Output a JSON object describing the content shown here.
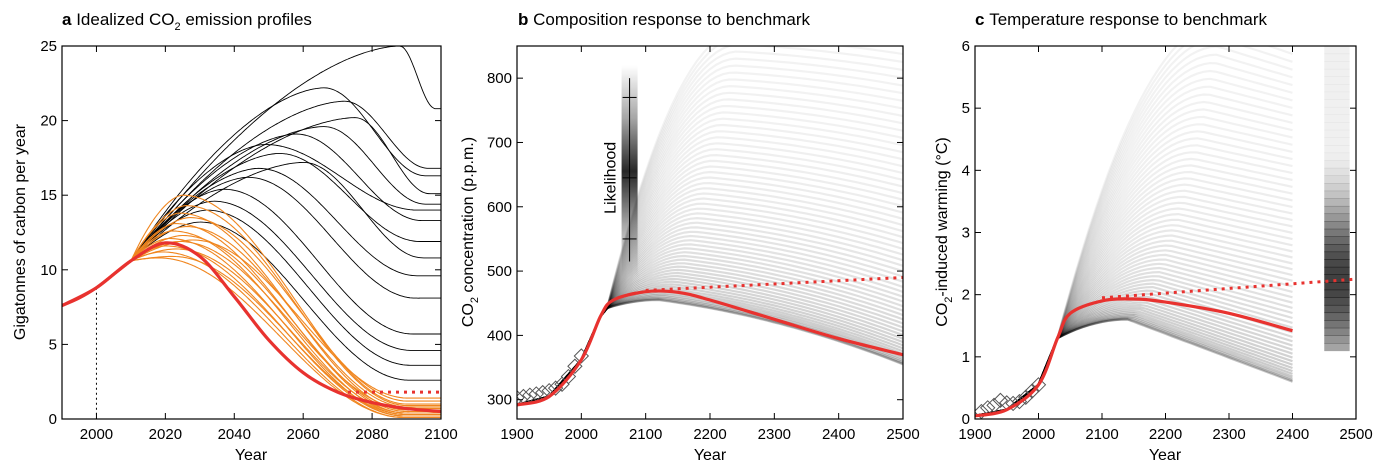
{
  "colors": {
    "background": "#ffffff",
    "highlight": "#e8322f",
    "orange": "#f0861f",
    "ensemble": "#000000"
  },
  "chart_data": [
    {
      "type": "line",
      "panel": "a",
      "title": "Idealized CO",
      "title_sub": "2",
      "title_rest": " emission profiles",
      "xlabel": "Year",
      "ylabel": "Gigatonnes of carbon per year",
      "xlim": [
        1990,
        2100
      ],
      "ylim": [
        0,
        25
      ],
      "xticks": [
        2000,
        2020,
        2040,
        2060,
        2080,
        2100
      ],
      "yticks": [
        0,
        5,
        10,
        15,
        20,
        25
      ],
      "grid": false,
      "history": {
        "x": [
          1990,
          1995,
          2000,
          2005,
          2010
        ],
        "y": [
          7.6,
          8.1,
          8.8,
          9.7,
          10.6
        ]
      },
      "marker_year": 2000,
      "benchmark": {
        "x": [
          1990,
          2000,
          2010,
          2020,
          2030,
          2040,
          2050,
          2060,
          2070,
          2080,
          2090,
          2100
        ],
        "y": [
          7.6,
          8.8,
          10.6,
          11.8,
          10.9,
          8.2,
          5.3,
          3.1,
          1.8,
          1.1,
          0.7,
          0.5
        ]
      },
      "benchmark_dotted": {
        "x": [
          2073,
          2100
        ],
        "y": [
          1.8,
          1.8
        ]
      },
      "black_profiles": [
        {
          "peak_year": 2088,
          "peak": 25.0,
          "end": 20.8
        },
        {
          "peak_year": 2066,
          "peak": 22.2,
          "end": 16.3
        },
        {
          "peak_year": 2072,
          "peak": 21.3,
          "end": 16.8
        },
        {
          "peak_year": 2075,
          "peak": 20.2,
          "end": 15.1
        },
        {
          "peak_year": 2066,
          "peak": 19.6,
          "end": 14.4
        },
        {
          "peak_year": 2058,
          "peak": 19.1,
          "end": 13.3
        },
        {
          "peak_year": 2049,
          "peak": 18.4,
          "end": 14.0
        },
        {
          "peak_year": 2053,
          "peak": 17.8,
          "end": 11.9
        },
        {
          "peak_year": 2060,
          "peak": 17.2,
          "end": 10.8
        },
        {
          "peak_year": 2047,
          "peak": 16.8,
          "end": 9.6
        },
        {
          "peak_year": 2044,
          "peak": 16.2,
          "end": 8.1
        },
        {
          "peak_year": 2037,
          "peak": 15.4,
          "end": 5.7
        },
        {
          "peak_year": 2034,
          "peak": 14.6,
          "end": 4.6
        },
        {
          "peak_year": 2032,
          "peak": 14.0,
          "end": 3.6
        },
        {
          "peak_year": 2030,
          "peak": 13.2,
          "end": 2.6
        }
      ],
      "orange_profiles": [
        {
          "peak_year": 2025,
          "peak": 15.0,
          "end": 1.0
        },
        {
          "peak_year": 2026,
          "peak": 14.3,
          "end": 0.9
        },
        {
          "peak_year": 2024,
          "peak": 13.8,
          "end": 0.6
        },
        {
          "peak_year": 2027,
          "peak": 13.5,
          "end": 1.2
        },
        {
          "peak_year": 2023,
          "peak": 13.1,
          "end": 0.4
        },
        {
          "peak_year": 2026,
          "peak": 12.9,
          "end": 0.8
        },
        {
          "peak_year": 2022,
          "peak": 12.6,
          "end": 0.3
        },
        {
          "peak_year": 2025,
          "peak": 12.3,
          "end": 0.5
        },
        {
          "peak_year": 2021,
          "peak": 12.1,
          "end": 0.2
        },
        {
          "peak_year": 2024,
          "peak": 11.9,
          "end": 0.7
        },
        {
          "peak_year": 2020,
          "peak": 11.6,
          "end": 0.2
        },
        {
          "peak_year": 2023,
          "peak": 11.4,
          "end": 0.4
        },
        {
          "peak_year": 2019,
          "peak": 11.2,
          "end": 0.1
        },
        {
          "peak_year": 2028,
          "peak": 12.0,
          "end": 1.4
        },
        {
          "peak_year": 2022,
          "peak": 10.9,
          "end": 0.3
        },
        {
          "peak_year": 2018,
          "peak": 10.8,
          "end": 0.1
        }
      ]
    },
    {
      "type": "line",
      "panel": "b",
      "title": "Composition response to benchmark",
      "xlabel": "Year",
      "ylabel": "CO",
      "ylabel_sub": "2",
      "ylabel_rest": " concentration (p.p.m.)",
      "xlim": [
        1900,
        2500
      ],
      "ylim": [
        270,
        850
      ],
      "xticks": [
        1900,
        2000,
        2100,
        2200,
        2300,
        2400,
        2500
      ],
      "yticks": [
        300,
        400,
        500,
        600,
        700,
        800
      ],
      "grid": false,
      "legend_label": "Likelihood",
      "likelihood_bar": {
        "x": 2075,
        "median": 645,
        "range": [
          490,
          820
        ]
      },
      "ensemble_envelope": {
        "low_2500": 355,
        "high_2500": 850
      },
      "benchmark": {
        "x": [
          1900,
          1950,
          2000,
          2030,
          2050,
          2100,
          2150,
          2200,
          2300,
          2400,
          2500
        ],
        "y": [
          292,
          305,
          362,
          430,
          455,
          468,
          467,
          455,
          425,
          395,
          370
        ]
      },
      "benchmark_dotted": {
        "x": [
          2100,
          2500
        ],
        "y": [
          470,
          490
        ]
      },
      "observations": {
        "x": [
          1900,
          1910,
          1920,
          1930,
          1940,
          1950,
          1960,
          1970,
          1980,
          1990,
          2000
        ],
        "y": [
          303,
          305,
          307,
          309,
          311,
          314,
          318,
          324,
          336,
          352,
          368
        ]
      }
    },
    {
      "type": "line",
      "panel": "c",
      "title": "Temperature response to benchmark",
      "xlabel": "Year",
      "ylabel": "CO",
      "ylabel_sub": "2",
      "ylabel_rest": "-induced warming (°C)",
      "xlim": [
        1900,
        2500
      ],
      "ylim": [
        0,
        6
      ],
      "xticks": [
        1900,
        2000,
        2100,
        2200,
        2300,
        2400,
        2500
      ],
      "yticks": [
        0,
        1,
        2,
        3,
        4,
        5,
        6
      ],
      "grid": false,
      "ensemble_envelope": {
        "low_2400": 0.6,
        "high_2400": 6.0
      },
      "benchmark": {
        "x": [
          1900,
          1950,
          2000,
          2030,
          2050,
          2100,
          2150,
          2200,
          2300,
          2400
        ],
        "y": [
          0.05,
          0.15,
          0.55,
          1.3,
          1.7,
          1.9,
          1.93,
          1.88,
          1.7,
          1.42
        ]
      },
      "benchmark_dotted": {
        "x": [
          2100,
          2500
        ],
        "y": [
          1.95,
          2.25
        ]
      },
      "equilibrium_bar": {
        "x": [
          2450,
          2490
        ],
        "range": [
          1.1,
          6.0
        ],
        "median": 2.25
      },
      "observations": {
        "x": [
          1910,
          1920,
          1930,
          1940,
          1950,
          1960,
          1970,
          1980,
          1990,
          2000
        ],
        "y": [
          0.12,
          0.18,
          0.22,
          0.3,
          0.26,
          0.25,
          0.28,
          0.35,
          0.45,
          0.55
        ]
      }
    }
  ]
}
